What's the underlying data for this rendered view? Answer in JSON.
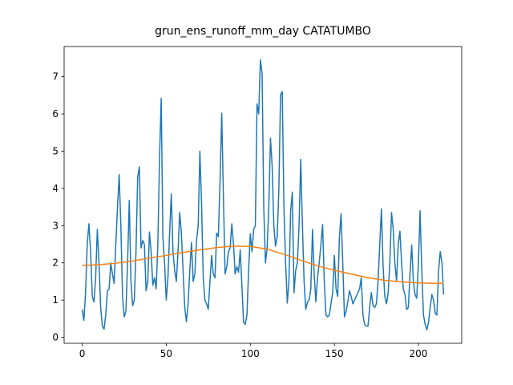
{
  "chart_data": {
    "type": "line",
    "title": "grun_ens_runoff_mm_day CATATUMBO",
    "xlim": [
      -10.75,
      225.75
    ],
    "xticks": [
      0,
      50,
      100,
      150,
      200
    ],
    "ylim": [
      -0.16,
      7.81
    ],
    "yticks": [
      0,
      1,
      2,
      3,
      4,
      5,
      6,
      7
    ],
    "series": [
      {
        "color": "#1f77b4",
        "x": [
          0,
          1,
          2,
          3,
          4,
          5,
          6,
          7,
          8,
          9,
          10,
          11,
          12,
          13,
          14,
          15,
          16,
          17,
          18,
          19,
          20,
          21,
          22,
          23,
          24,
          25,
          26,
          27,
          28,
          29,
          30,
          31,
          32,
          33,
          34,
          35,
          36,
          37,
          38,
          39,
          40,
          41,
          42,
          43,
          44,
          45,
          46,
          47,
          48,
          49,
          50,
          51,
          52,
          53,
          54,
          55,
          56,
          57,
          58,
          59,
          60,
          61,
          62,
          63,
          64,
          65,
          66,
          67,
          68,
          69,
          70,
          71,
          72,
          73,
          74,
          75,
          76,
          77,
          78,
          79,
          80,
          81,
          82,
          83,
          84,
          85,
          86,
          87,
          88,
          89,
          90,
          91,
          92,
          93,
          94,
          95,
          96,
          97,
          98,
          99,
          100,
          101,
          102,
          103,
          104,
          105,
          106,
          107,
          108,
          109,
          110,
          111,
          112,
          113,
          114,
          115,
          116,
          117,
          118,
          119,
          120,
          121,
          122,
          123,
          124,
          125,
          126,
          127,
          128,
          129,
          130,
          131,
          132,
          133,
          134,
          135,
          136,
          137,
          138,
          139,
          140,
          141,
          142,
          143,
          144,
          145,
          146,
          147,
          148,
          149,
          150,
          151,
          152,
          153,
          154,
          155,
          156,
          157,
          158,
          159,
          160,
          161,
          162,
          163,
          164,
          165,
          166,
          167,
          168,
          169,
          170,
          171,
          172,
          173,
          174,
          175,
          176,
          177,
          178,
          179,
          180,
          181,
          182,
          183,
          184,
          185,
          186,
          187,
          188,
          189,
          190,
          191,
          192,
          193,
          194,
          195,
          196,
          197,
          198,
          199,
          200,
          201,
          202,
          203,
          204,
          205,
          206,
          207,
          208,
          209,
          210,
          211,
          212,
          213,
          214,
          215
        ],
        "values": [
          0.75,
          0.45,
          1.2,
          2.5,
          3.05,
          2.3,
          1.1,
          0.95,
          1.6,
          2.9,
          2.0,
          0.8,
          0.3,
          0.22,
          0.6,
          1.25,
          1.3,
          2.0,
          1.7,
          1.45,
          2.5,
          3.5,
          4.37,
          3.0,
          1.1,
          0.55,
          0.7,
          2.0,
          3.68,
          1.5,
          0.85,
          1.0,
          2.3,
          4.3,
          4.58,
          2.4,
          2.6,
          2.5,
          1.25,
          1.5,
          2.83,
          2.3,
          1.4,
          1.6,
          1.3,
          2.5,
          4.8,
          6.42,
          2.7,
          2.0,
          1.0,
          1.6,
          2.8,
          3.85,
          2.3,
          1.8,
          1.5,
          2.3,
          3.35,
          2.8,
          1.8,
          0.8,
          0.42,
          0.9,
          1.8,
          2.55,
          1.5,
          1.7,
          2.6,
          3.0,
          5.0,
          3.6,
          1.6,
          1.0,
          0.9,
          0.75,
          1.5,
          2.2,
          1.7,
          1.6,
          2.8,
          2.7,
          4.2,
          6.02,
          3.8,
          1.7,
          1.9,
          2.3,
          2.4,
          3.05,
          2.5,
          1.7,
          1.9,
          1.75,
          2.35,
          1.4,
          0.4,
          0.35,
          0.6,
          1.8,
          2.78,
          2.3,
          2.9,
          3.0,
          6.27,
          6.0,
          7.45,
          7.1,
          3.5,
          2.0,
          2.4,
          3.5,
          5.35,
          4.6,
          3.0,
          2.45,
          2.7,
          4.0,
          6.52,
          6.6,
          3.5,
          2.0,
          0.92,
          1.5,
          3.4,
          3.9,
          1.2,
          1.8,
          2.0,
          3.0,
          4.78,
          3.0,
          1.5,
          0.75,
          0.95,
          1.0,
          1.3,
          2.9,
          1.7,
          0.95,
          1.6,
          2.0,
          2.5,
          3.03,
          1.5,
          0.6,
          0.55,
          0.6,
          0.9,
          1.2,
          2.2,
          1.3,
          1.1,
          2.7,
          3.32,
          2.0,
          0.55,
          0.7,
          0.95,
          1.25,
          1.1,
          0.9,
          1.0,
          1.1,
          1.2,
          1.3,
          1.6,
          0.6,
          0.35,
          0.3,
          0.3,
          0.8,
          1.2,
          0.85,
          0.8,
          0.9,
          1.5,
          2.5,
          3.45,
          1.9,
          1.1,
          0.9,
          1.2,
          2.0,
          3.35,
          2.9,
          2.0,
          1.5,
          2.5,
          2.85,
          2.0,
          1.3,
          1.15,
          0.75,
          0.8,
          1.7,
          2.48,
          1.5,
          1.15,
          1.05,
          2.0,
          3.4,
          1.8,
          0.6,
          0.35,
          0.2,
          0.4,
          0.8,
          1.15,
          1.0,
          0.65,
          0.6,
          1.8,
          2.3,
          2.0,
          1.15
        ]
      },
      {
        "color": "#ff7f0e",
        "x": [
          0,
          10,
          20,
          30,
          40,
          50,
          60,
          70,
          80,
          90,
          100,
          110,
          120,
          130,
          140,
          150,
          160,
          170,
          180,
          190,
          200,
          210,
          215
        ],
        "values": [
          1.93,
          1.95,
          1.99,
          2.05,
          2.13,
          2.2,
          2.28,
          2.35,
          2.41,
          2.45,
          2.44,
          2.37,
          2.23,
          2.07,
          1.92,
          1.8,
          1.7,
          1.6,
          1.53,
          1.49,
          1.46,
          1.45,
          1.45
        ]
      }
    ]
  }
}
